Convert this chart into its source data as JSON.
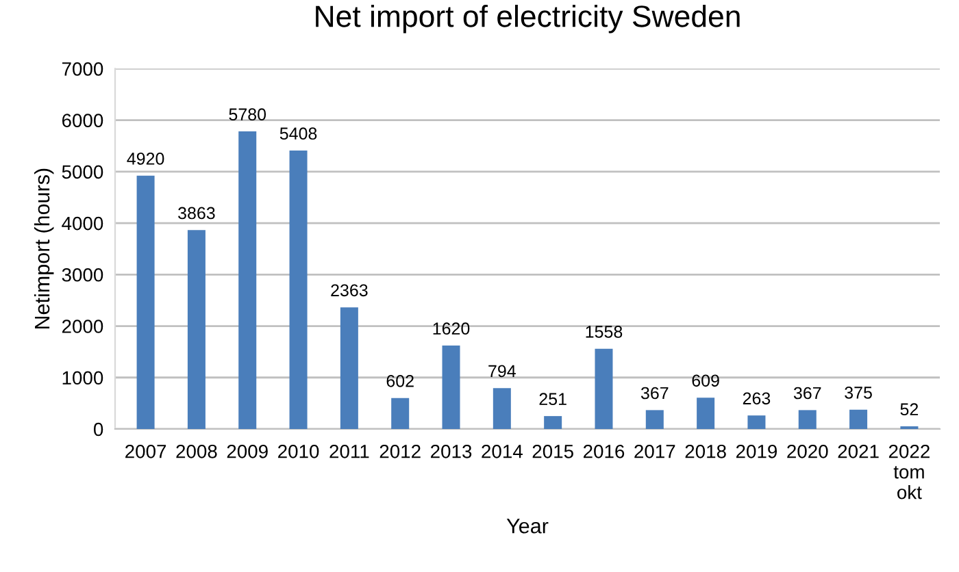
{
  "chart_data": {
    "type": "bar",
    "title": "Net import of electricity Sweden",
    "xlabel": "Year",
    "ylabel": "Netimport (hours)",
    "categories": [
      "2007",
      "2008",
      "2009",
      "2010",
      "2011",
      "2012",
      "2013",
      "2014",
      "2015",
      "2016",
      "2017",
      "2018",
      "2019",
      "2020",
      "2021",
      "2022\ntom\nokt"
    ],
    "values": [
      4920,
      3863,
      5780,
      5408,
      2363,
      602,
      1620,
      794,
      251,
      1558,
      367,
      609,
      263,
      367,
      375,
      52
    ],
    "color": "#4a7ebb",
    "ylim": [
      0,
      7000
    ],
    "yticks": [
      0,
      1000,
      2000,
      3000,
      4000,
      5000,
      6000,
      7000
    ],
    "grid": "y",
    "data_labels": true
  }
}
